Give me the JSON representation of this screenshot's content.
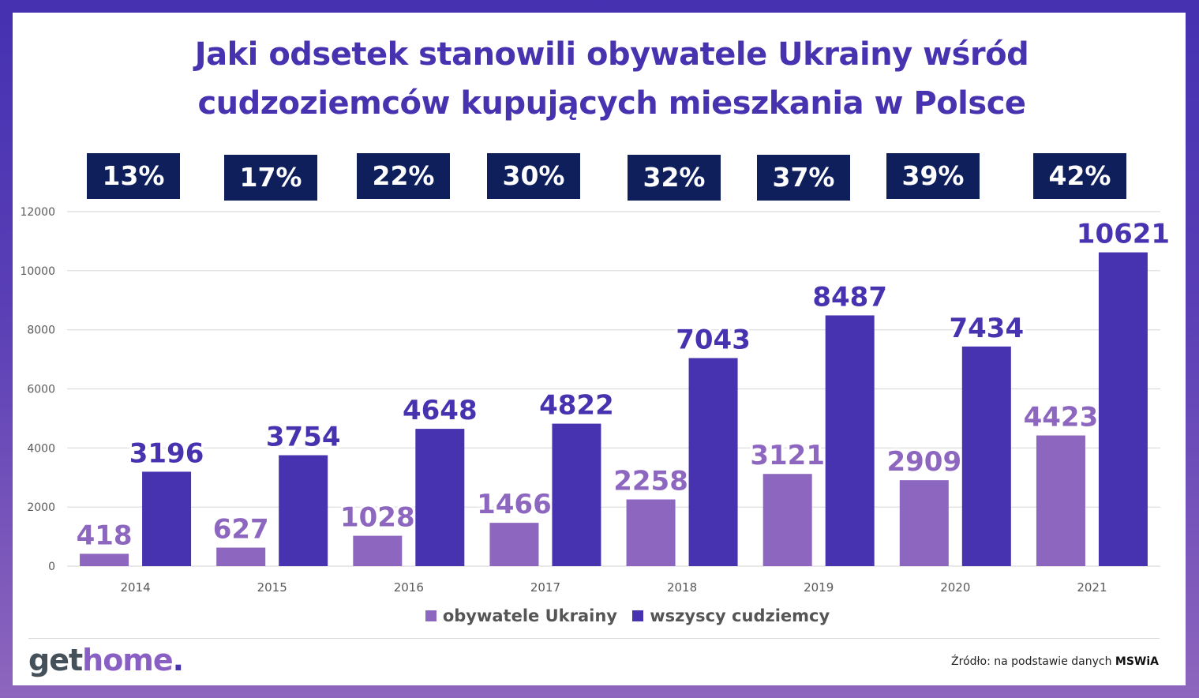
{
  "title": {
    "line1": "Jaki odsetek stanowili obywatele Ukrainy wśród",
    "line2": "cudzoziemców kupujących mieszkania w Polsce"
  },
  "colors": {
    "ukraine": "#8d67bf",
    "all": "#4733b0",
    "pct_box": "#0f1f5c",
    "title": "#4733b0"
  },
  "chart_data": {
    "type": "bar",
    "title": "Jaki odsetek stanowili obywatele Ukrainy wśród cudzoziemców kupujących mieszkania w Polsce",
    "categories": [
      "2014",
      "2015",
      "2016",
      "2017",
      "2018",
      "2019",
      "2020",
      "2021"
    ],
    "series": [
      {
        "name": "obywatele Ukrainy",
        "values": [
          418,
          627,
          1028,
          1466,
          2258,
          3121,
          2909,
          4423
        ]
      },
      {
        "name": "wszyscy cudziemcy",
        "values": [
          3196,
          3754,
          4648,
          4822,
          7043,
          8487,
          7434,
          10621
        ]
      }
    ],
    "shares": [
      "13%",
      "17%",
      "22%",
      "30%",
      "32%",
      "37%",
      "39%",
      "42%"
    ],
    "ylim": [
      0,
      12000
    ],
    "yticks": [
      "0",
      "2000",
      "4000",
      "6000",
      "8000",
      "10000",
      "12000"
    ],
    "xlabel": "",
    "ylabel": "",
    "grid": true,
    "legend_position": "bottom"
  },
  "legend": {
    "items": [
      {
        "label": "obywatele Ukrainy"
      },
      {
        "label": "wszyscy cudziemcy"
      }
    ]
  },
  "footer": {
    "logo_get": "get",
    "logo_home": "home",
    "logo_dot": ".",
    "source_prefix": "Źródło: na podstawie danych",
    "source_bold": "MSWiA"
  }
}
